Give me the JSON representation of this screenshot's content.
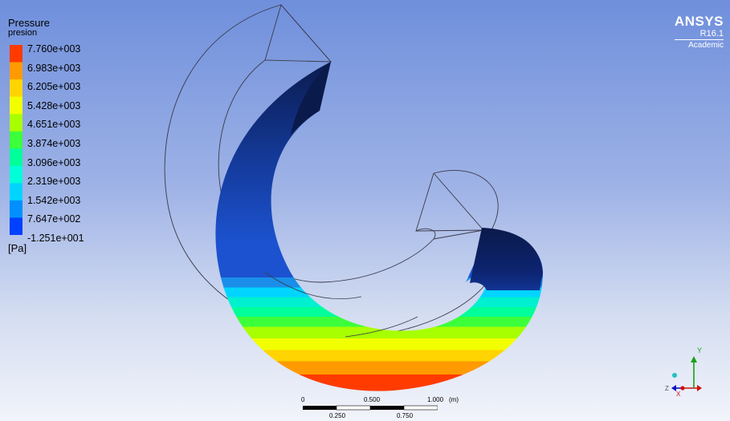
{
  "legend": {
    "title": "Pressure",
    "subtitle": "presion",
    "unit": "[Pa]",
    "labels": [
      "7.760e+003",
      "6.983e+003",
      "6.205e+003",
      "5.428e+003",
      "4.651e+003",
      "3.874e+003",
      "3.096e+003",
      "2.319e+003",
      "1.542e+003",
      "7.647e+002",
      "-1.251e+001"
    ],
    "colors": [
      "#ff3b00",
      "#ff9a00",
      "#ffd400",
      "#f2ff00",
      "#a8ff00",
      "#3cff3c",
      "#00ff9a",
      "#00ffd8",
      "#00d4ff",
      "#0090ff",
      "#0040ff"
    ]
  },
  "brand": {
    "name": "ANSYS",
    "version": "R16.1",
    "edition": "Academic"
  },
  "scale_bar": {
    "top_labels": [
      "0",
      "0.500",
      "1.000"
    ],
    "bottom_labels": [
      "0.250",
      "0.750"
    ],
    "unit": "(m)"
  },
  "triad": {
    "x_label": "X",
    "y_label": "Y",
    "z_label": "Z"
  }
}
